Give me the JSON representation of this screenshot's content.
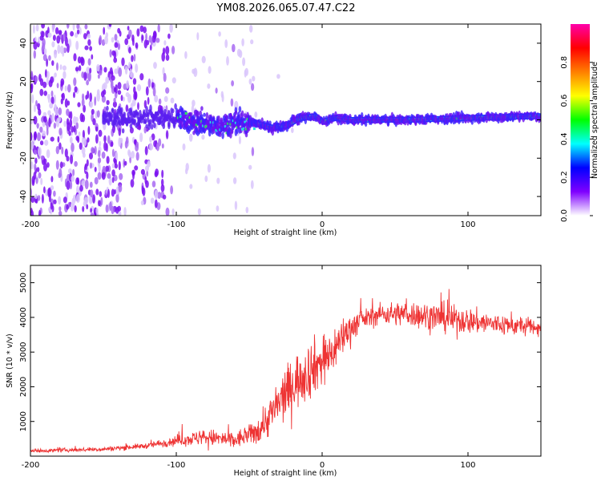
{
  "title": "YM08.2026.065.07.47.C22",
  "chart_data": [
    {
      "type": "heatmap",
      "name": "spectrogram",
      "xlabel": "Height of straight line (km)",
      "ylabel": "Frequency (Hz)",
      "xlim": [
        -200,
        150
      ],
      "ylim": [
        -50,
        50
      ],
      "xticks": [
        -200,
        -100,
        0,
        100
      ],
      "yticks": [
        -40,
        -20,
        0,
        20,
        40
      ],
      "colorbar": {
        "label": "Normalized spectral amplitude",
        "range": [
          0.0,
          1.0
        ],
        "ticks": [
          0.0,
          0.2,
          0.4,
          0.6,
          0.8
        ],
        "colors": [
          "#ffffff",
          "#7f00ff",
          "#0000ff",
          "#00ffff",
          "#00ff00",
          "#ffff00",
          "#ff7f00",
          "#ff0000",
          "#ff00aa"
        ]
      },
      "ridge_frequency": [
        {
          "x": -150,
          "y": 1
        },
        {
          "x": -100,
          "y": 1
        },
        {
          "x": -75,
          "y": -3
        },
        {
          "x": -50,
          "y": -1
        },
        {
          "x": -35,
          "y": -4
        },
        {
          "x": -25,
          "y": -3
        },
        {
          "x": -15,
          "y": 1
        },
        {
          "x": -5,
          "y": 2
        },
        {
          "x": 0,
          "y": -1
        },
        {
          "x": 8,
          "y": 1
        },
        {
          "x": 20,
          "y": 0
        },
        {
          "x": 60,
          "y": 0
        },
        {
          "x": 100,
          "y": 1
        },
        {
          "x": 150,
          "y": 2
        }
      ]
    },
    {
      "type": "line",
      "name": "snr",
      "xlabel": "Height of straight line (km)",
      "ylabel": "SNR (10 * v/v)",
      "xlim": [
        -200,
        150
      ],
      "ylim": [
        0,
        5500
      ],
      "xticks": [
        -200,
        -100,
        0,
        100
      ],
      "yticks": [
        1000,
        2000,
        3000,
        4000,
        5000
      ],
      "color": "#ee3333",
      "trend": [
        {
          "x": -200,
          "y": 150
        },
        {
          "x": -150,
          "y": 200
        },
        {
          "x": -120,
          "y": 300
        },
        {
          "x": -100,
          "y": 450
        },
        {
          "x": -80,
          "y": 550
        },
        {
          "x": -60,
          "y": 450
        },
        {
          "x": -45,
          "y": 700
        },
        {
          "x": -35,
          "y": 1200
        },
        {
          "x": -25,
          "y": 1800
        },
        {
          "x": -15,
          "y": 2300
        },
        {
          "x": -5,
          "y": 2600
        },
        {
          "x": 5,
          "y": 2900
        },
        {
          "x": 15,
          "y": 3500
        },
        {
          "x": 25,
          "y": 3900
        },
        {
          "x": 40,
          "y": 4100
        },
        {
          "x": 60,
          "y": 4100
        },
        {
          "x": 80,
          "y": 4000
        },
        {
          "x": 100,
          "y": 3900
        },
        {
          "x": 120,
          "y": 3800
        },
        {
          "x": 150,
          "y": 3700
        }
      ],
      "noise_amplitude": [
        {
          "x": -200,
          "y": 60
        },
        {
          "x": -120,
          "y": 100
        },
        {
          "x": -80,
          "y": 300
        },
        {
          "x": -50,
          "y": 350
        },
        {
          "x": -30,
          "y": 900
        },
        {
          "x": -10,
          "y": 1100
        },
        {
          "x": 10,
          "y": 800
        },
        {
          "x": 30,
          "y": 350
        },
        {
          "x": 80,
          "y": 550
        },
        {
          "x": 150,
          "y": 300
        }
      ]
    }
  ]
}
